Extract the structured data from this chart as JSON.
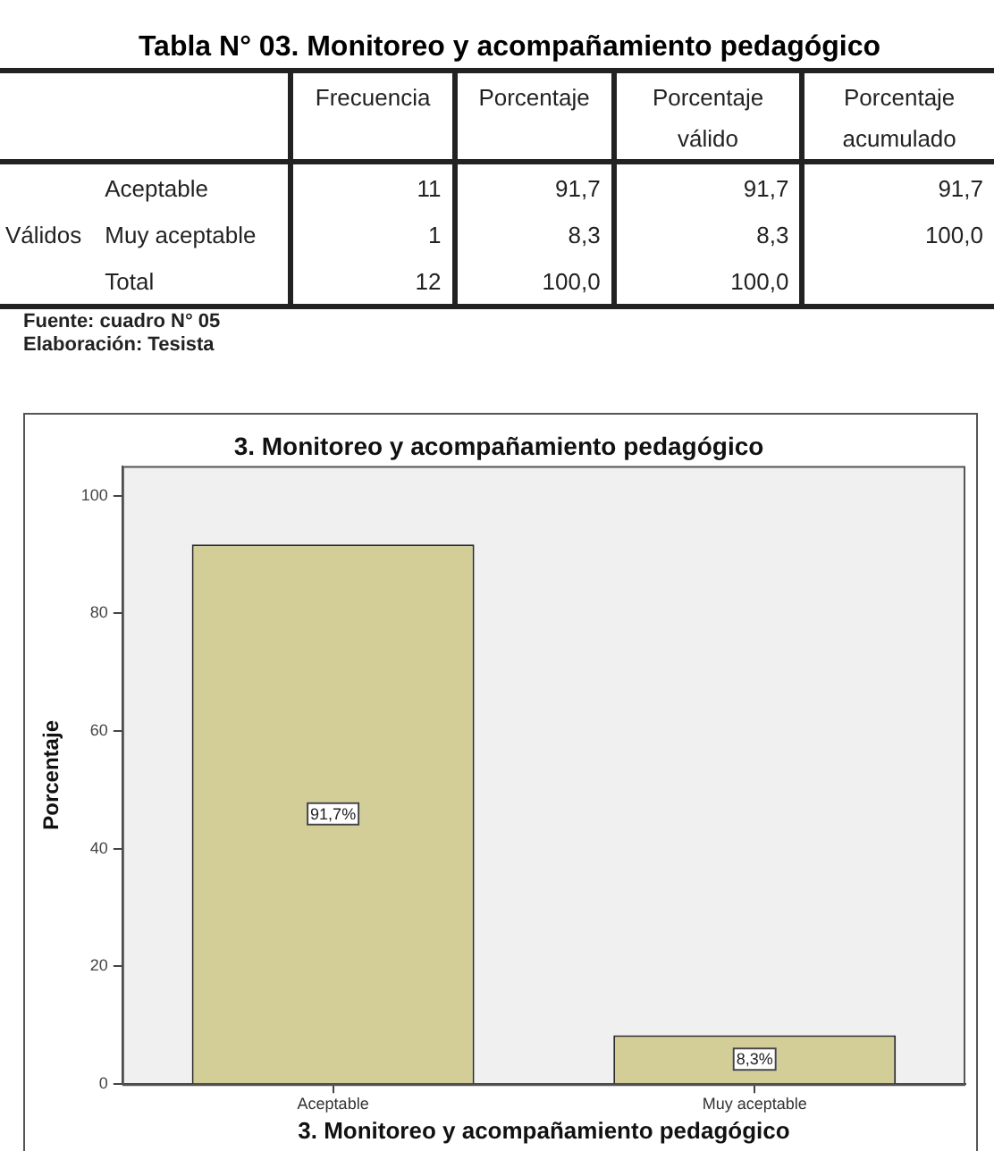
{
  "chart_data": [
    {
      "type": "other",
      "title": "Tabla N° 03. Monitoreo y acompañamiento pedagógico",
      "categories": [
        "Frecuencia",
        "Porcentaje",
        "Porcentaje válido",
        "Porcentaje acumulado"
      ],
      "ylabel": "Válidos",
      "y_categories": [
        "Aceptable",
        "Muy aceptable",
        "Total"
      ],
      "cell_labels": [
        [
          "11",
          "91,7",
          "91,7",
          "91,7"
        ],
        [
          "1",
          "8,3",
          "8,3",
          "100,0"
        ],
        [
          "12",
          "100,0",
          "100,0",
          null
        ]
      ],
      "annotations": [
        "Fuente: cuadro N° 05",
        "Elaboración: Tesista"
      ]
    },
    {
      "type": "bar",
      "title": "3. Monitoreo y acompañamiento pedagógico",
      "xlabel": "3. Monitoreo y acompañamiento pedagógico",
      "ylabel": "Porcentaje",
      "categories": [
        "Aceptable",
        "Muy aceptable"
      ],
      "values": [
        91.7,
        8.3
      ],
      "value_labels": [
        "91,7%",
        "8,3%"
      ],
      "color": "#d3ce98",
      "ylim": [
        0,
        105
      ],
      "yticks": [
        0,
        20,
        40,
        60,
        80,
        100
      ],
      "grid": false
    }
  ]
}
